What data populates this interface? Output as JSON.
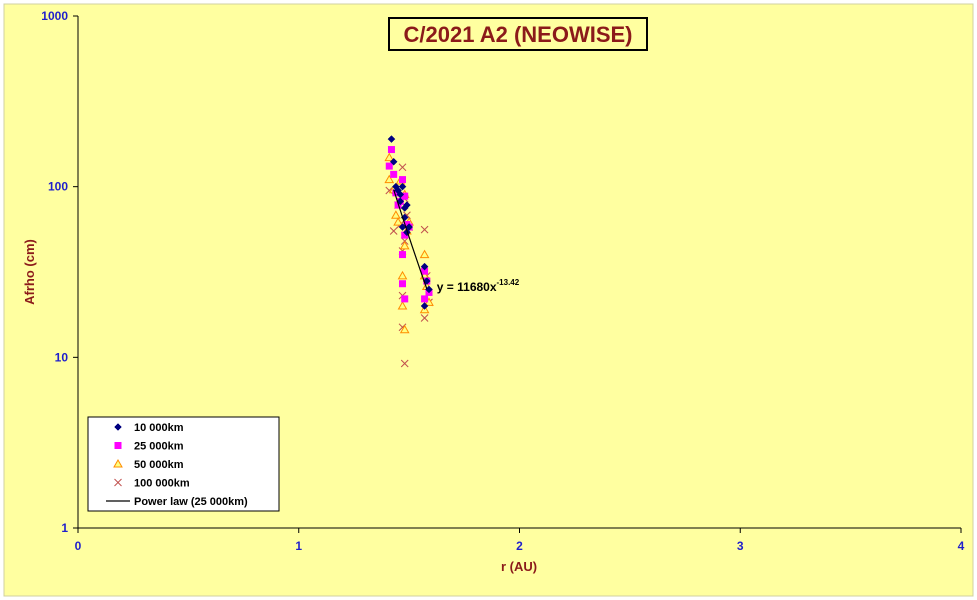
{
  "chart_data": {
    "type": "scatter",
    "title": "C/2021 A2 (NEOWISE)",
    "xlabel": "r (AU)",
    "ylabel": "Afrho (cm)",
    "xlim": [
      0,
      4
    ],
    "ylim": [
      1,
      1000
    ],
    "yscale": "log",
    "x_ticks": [
      "0",
      "1",
      "2",
      "3",
      "4"
    ],
    "y_ticks": [
      "1",
      "10",
      "100",
      "1000"
    ],
    "grid": false,
    "legend_position": "bottom-left",
    "colors": {
      "background": "#ffffa0",
      "s10k": "#000080",
      "s25k": "#ff00ff",
      "s50k": "#ff8c00",
      "s100k": "#c0504d",
      "power": "#000000"
    },
    "series": [
      {
        "name": "10 000km",
        "marker": "diamond",
        "points": [
          [
            1.42,
            190
          ],
          [
            1.43,
            140
          ],
          [
            1.44,
            100
          ],
          [
            1.45,
            95
          ],
          [
            1.46,
            90
          ],
          [
            1.46,
            82
          ],
          [
            1.47,
            100
          ],
          [
            1.47,
            58
          ],
          [
            1.48,
            75
          ],
          [
            1.49,
            78
          ],
          [
            1.48,
            66
          ],
          [
            1.5,
            58
          ],
          [
            1.49,
            54
          ],
          [
            1.57,
            34
          ],
          [
            1.58,
            28
          ],
          [
            1.57,
            20
          ],
          [
            1.59,
            25
          ]
        ]
      },
      {
        "name": "25 000km",
        "marker": "square",
        "points": [
          [
            1.42,
            165
          ],
          [
            1.41,
            132
          ],
          [
            1.43,
            118
          ],
          [
            1.44,
            92
          ],
          [
            1.45,
            78
          ],
          [
            1.46,
            82
          ],
          [
            1.47,
            110
          ],
          [
            1.47,
            40
          ],
          [
            1.48,
            52
          ],
          [
            1.48,
            88
          ],
          [
            1.49,
            60
          ],
          [
            1.5,
            58
          ],
          [
            1.47,
            27
          ],
          [
            1.48,
            22
          ],
          [
            1.57,
            32
          ],
          [
            1.57,
            22
          ],
          [
            1.58,
            28
          ],
          [
            1.59,
            24
          ]
        ]
      },
      {
        "name": "50 000km",
        "marker": "triangle",
        "points": [
          [
            1.41,
            148
          ],
          [
            1.41,
            110
          ],
          [
            1.43,
            96
          ],
          [
            1.44,
            68
          ],
          [
            1.45,
            62
          ],
          [
            1.46,
            108
          ],
          [
            1.47,
            30
          ],
          [
            1.48,
            90
          ],
          [
            1.48,
            45
          ],
          [
            1.49,
            55
          ],
          [
            1.5,
            62
          ],
          [
            1.47,
            20
          ],
          [
            1.48,
            14.5
          ],
          [
            1.57,
            40
          ],
          [
            1.57,
            30
          ],
          [
            1.58,
            26
          ],
          [
            1.57,
            19
          ],
          [
            1.59,
            21
          ]
        ]
      },
      {
        "name": "100 000km",
        "marker": "cross",
        "points": [
          [
            1.41,
            95
          ],
          [
            1.43,
            55
          ],
          [
            1.45,
            78
          ],
          [
            1.46,
            60
          ],
          [
            1.47,
            130
          ],
          [
            1.47,
            42
          ],
          [
            1.48,
            85
          ],
          [
            1.48,
            48
          ],
          [
            1.49,
            68
          ],
          [
            1.5,
            58
          ],
          [
            1.47,
            23
          ],
          [
            1.47,
            15
          ],
          [
            1.48,
            9.2
          ],
          [
            1.57,
            56
          ],
          [
            1.58,
            30
          ],
          [
            1.57,
            17
          ],
          [
            1.59,
            21
          ]
        ]
      }
    ],
    "fit": {
      "name": "Power law (25 000km)",
      "coefficient": 11680,
      "exponent": -13.42,
      "x_range": [
        1.43,
        1.58
      ],
      "label_base": "y = 11680x",
      "label_exp": "-13.42"
    }
  }
}
